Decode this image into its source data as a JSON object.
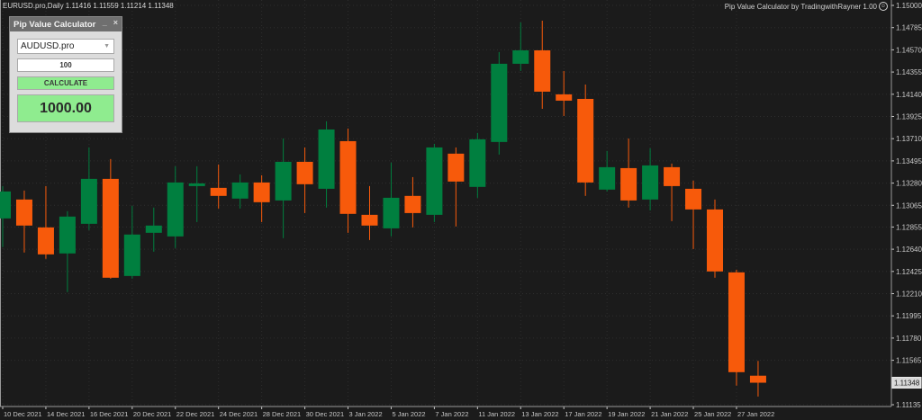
{
  "header": {
    "symbol_info": "EURUSD.pro,Daily  1.11416 1.11559 1.11214 1.11348",
    "indicator_info": "Pip Value Calculator by TradingwithRayner 1.00",
    "indicator_icon": "smiley-icon"
  },
  "panel": {
    "title": "Pip Value Calculator",
    "minimize": "_",
    "close": "×",
    "symbol_select": "AUDUSD.pro",
    "pips_input": "100",
    "calculate_label": "CALCULATE",
    "result": "1000.00"
  },
  "colors": {
    "background": "#1b1b1b",
    "bull": "#007f3f",
    "bear": "#f75a0b",
    "axis": "#c8c8c8"
  },
  "chart_data": {
    "type": "candlestick",
    "symbol": "EURUSD.pro",
    "timeframe": "Daily",
    "ylim": [
      1.11135,
      1.15
    ],
    "grid": true,
    "y_ticks": [
      "1.15000",
      "1.14785",
      "1.14570",
      "1.14355",
      "1.14140",
      "1.13925",
      "1.13710",
      "1.13495",
      "1.13280",
      "1.13065",
      "1.12855",
      "1.12640",
      "1.12425",
      "1.12210",
      "1.11995",
      "1.11780",
      "1.11565",
      "1.11348",
      "1.11135"
    ],
    "last_price": "1.11348",
    "x_ticks": [
      "10 Dec 2021",
      "14 Dec 2021",
      "16 Dec 2021",
      "20 Dec 2021",
      "22 Dec 2021",
      "24 Dec 2021",
      "28 Dec 2021",
      "30 Dec 2021",
      "3 Jan 2022",
      "5 Jan 2022",
      "7 Jan 2022",
      "11 Jan 2022",
      "13 Jan 2022",
      "17 Jan 2022",
      "19 Jan 2022",
      "21 Jan 2022",
      "25 Jan 2022",
      "27 Jan 2022"
    ],
    "candles": [
      {
        "date": "10 Dec 2021",
        "o": 1.12938,
        "h": 1.13251,
        "l": 1.1266,
        "c": 1.13199
      },
      {
        "date": "13 Dec 2021",
        "o": 1.13121,
        "h": 1.13208,
        "l": 1.12608,
        "c": 1.12869
      },
      {
        "date": "14 Dec 2021",
        "o": 1.12851,
        "h": 1.13251,
        "l": 1.12547,
        "c": 1.1259
      },
      {
        "date": "15 Dec 2021",
        "o": 1.12599,
        "h": 1.13008,
        "l": 1.12225,
        "c": 1.12956
      },
      {
        "date": "16 Dec 2021",
        "o": 1.12886,
        "h": 1.13625,
        "l": 1.12825,
        "c": 1.13321
      },
      {
        "date": "17 Dec 2021",
        "o": 1.13321,
        "h": 1.13512,
        "l": 1.12355,
        "c": 1.12364
      },
      {
        "date": "20 Dec 2021",
        "o": 1.12381,
        "h": 1.1306,
        "l": 1.12355,
        "c": 1.12782
      },
      {
        "date": "21 Dec 2021",
        "o": 1.12799,
        "h": 1.13043,
        "l": 1.12616,
        "c": 1.12869
      },
      {
        "date": "22 Dec 2021",
        "o": 1.12764,
        "h": 1.13443,
        "l": 1.12651,
        "c": 1.13286
      },
      {
        "date": "23 Dec 2021",
        "o": 1.13251,
        "h": 1.13443,
        "l": 1.12903,
        "c": 1.13277
      },
      {
        "date": "24 Dec 2021",
        "o": 1.13234,
        "h": 1.1346,
        "l": 1.13034,
        "c": 1.13156
      },
      {
        "date": "27 Dec 2021",
        "o": 1.1313,
        "h": 1.13364,
        "l": 1.13034,
        "c": 1.13286
      },
      {
        "date": "28 Dec 2021",
        "o": 1.13286,
        "h": 1.13356,
        "l": 1.12903,
        "c": 1.13095
      },
      {
        "date": "29 Dec 2021",
        "o": 1.13112,
        "h": 1.13712,
        "l": 1.12747,
        "c": 1.13486
      },
      {
        "date": "30 Dec 2021",
        "o": 1.13486,
        "h": 1.13625,
        "l": 1.1299,
        "c": 1.13269
      },
      {
        "date": "31 Dec 2021",
        "o": 1.13225,
        "h": 1.13878,
        "l": 1.13043,
        "c": 1.13799
      },
      {
        "date": "3 Jan 2022",
        "o": 1.13686,
        "h": 1.13808,
        "l": 1.12799,
        "c": 1.12982
      },
      {
        "date": "4 Jan 2022",
        "o": 1.12973,
        "h": 1.13251,
        "l": 1.12729,
        "c": 1.12869
      },
      {
        "date": "5 Jan 2022",
        "o": 1.12842,
        "h": 1.13478,
        "l": 1.12764,
        "c": 1.13138
      },
      {
        "date": "6 Jan 2022",
        "o": 1.13156,
        "h": 1.13338,
        "l": 1.12851,
        "c": 1.1299
      },
      {
        "date": "7 Jan 2022",
        "o": 1.12973,
        "h": 1.1366,
        "l": 1.12903,
        "c": 1.13625
      },
      {
        "date": "10 Jan 2022",
        "o": 1.13565,
        "h": 1.13625,
        "l": 1.1286,
        "c": 1.13295
      },
      {
        "date": "11 Jan 2022",
        "o": 1.13243,
        "h": 1.13765,
        "l": 1.13138,
        "c": 1.13704
      },
      {
        "date": "12 Jan 2022",
        "o": 1.13678,
        "h": 1.14548,
        "l": 1.13556,
        "c": 1.14435
      },
      {
        "date": "13 Jan 2022",
        "o": 1.14435,
        "h": 1.14835,
        "l": 1.14365,
        "c": 1.14565
      },
      {
        "date": "14 Jan 2022",
        "o": 1.14565,
        "h": 1.14852,
        "l": 1.13999,
        "c": 1.14165
      },
      {
        "date": "17 Jan 2022",
        "o": 1.14139,
        "h": 1.14365,
        "l": 1.1393,
        "c": 1.14078
      },
      {
        "date": "18 Jan 2022",
        "o": 1.14095,
        "h": 1.14234,
        "l": 1.13156,
        "c": 1.13286
      },
      {
        "date": "19 Jan 2022",
        "o": 1.13217,
        "h": 1.13591,
        "l": 1.13199,
        "c": 1.13434
      },
      {
        "date": "20 Jan 2022",
        "o": 1.13425,
        "h": 1.13712,
        "l": 1.13043,
        "c": 1.13112
      },
      {
        "date": "21 Jan 2022",
        "o": 1.13121,
        "h": 1.13617,
        "l": 1.13016,
        "c": 1.13451
      },
      {
        "date": "24 Jan 2022",
        "o": 1.13434,
        "h": 1.13469,
        "l": 1.12912,
        "c": 1.13251
      },
      {
        "date": "25 Jan 2022",
        "o": 1.13225,
        "h": 1.13304,
        "l": 1.12642,
        "c": 1.13025
      },
      {
        "date": "26 Jan 2022",
        "o": 1.13025,
        "h": 1.13121,
        "l": 1.12364,
        "c": 1.12425
      },
      {
        "date": "27 Jan 2022",
        "o": 1.12416,
        "h": 1.12442,
        "l": 1.1132,
        "c": 1.1145
      },
      {
        "date": "28 Jan 2022",
        "o": 1.11416,
        "h": 1.11559,
        "l": 1.11214,
        "c": 1.11348
      }
    ]
  }
}
